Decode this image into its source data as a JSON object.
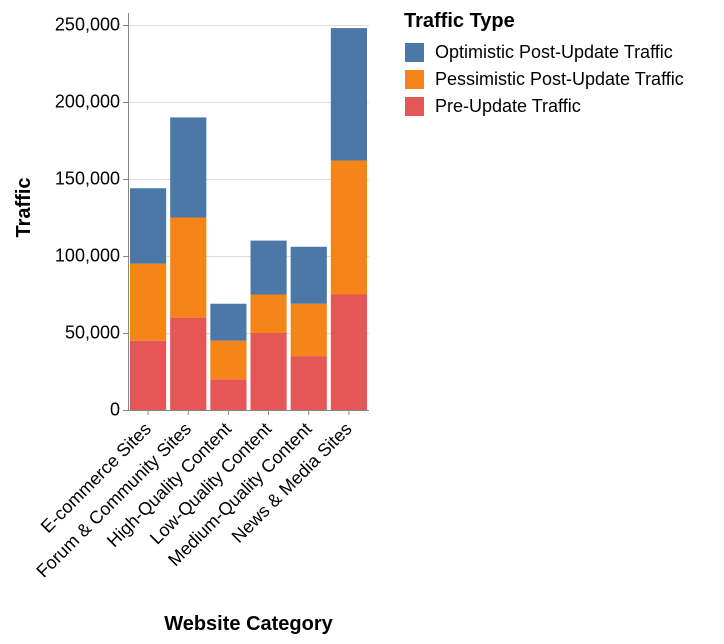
{
  "chart_data": {
    "type": "bar",
    "stacked": true,
    "xlabel": "Website Category",
    "ylabel": "Traffic",
    "ylim": [
      0,
      250000
    ],
    "yticks": [
      0,
      50000,
      100000,
      150000,
      200000,
      250000
    ],
    "grid": true,
    "categories": [
      "E-commerce Sites",
      "Forum & Community Sites",
      "High-Quality Content",
      "Low-Quality Content",
      "Medium-Quality Content",
      "News & Media Sites"
    ],
    "series": [
      {
        "name": "Pre-Update Traffic",
        "color": "#e45756",
        "values": [
          45000,
          60000,
          20000,
          50000,
          35000,
          75000
        ]
      },
      {
        "name": "Pessimistic Post-Update Traffic",
        "color": "#f58518",
        "values": [
          50000,
          65000,
          25000,
          25000,
          34000,
          87000
        ]
      },
      {
        "name": "Optimistic Post-Update Traffic",
        "color": "#4c78a8",
        "values": [
          49000,
          65000,
          24000,
          35000,
          37000,
          86000
        ]
      }
    ],
    "legend": {
      "title": "Traffic Type",
      "placement": "top-right",
      "order": [
        "Optimistic Post-Update Traffic",
        "Pessimistic Post-Update Traffic",
        "Pre-Update Traffic"
      ]
    }
  }
}
